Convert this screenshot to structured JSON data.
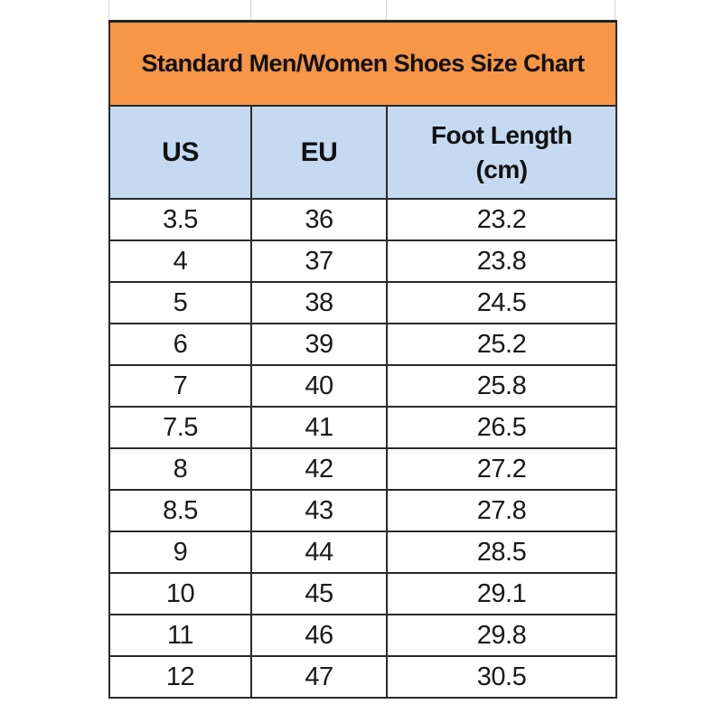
{
  "title": "Standard Men/Women Shoes Size Chart",
  "columns": {
    "us": "US",
    "eu": "EU",
    "foot_length_line1": "Foot Length",
    "foot_length_line2": "(cm)"
  },
  "colors": {
    "title_bg": "#f79646",
    "header_bg": "#c5d9f1"
  },
  "rows": [
    {
      "us": "3.5",
      "eu": "36",
      "cm": "23.2"
    },
    {
      "us": "4",
      "eu": "37",
      "cm": "23.8"
    },
    {
      "us": "5",
      "eu": "38",
      "cm": "24.5"
    },
    {
      "us": "6",
      "eu": "39",
      "cm": "25.2"
    },
    {
      "us": "7",
      "eu": "40",
      "cm": "25.8"
    },
    {
      "us": "7.5",
      "eu": "41",
      "cm": "26.5"
    },
    {
      "us": "8",
      "eu": "42",
      "cm": "27.2"
    },
    {
      "us": "8.5",
      "eu": "43",
      "cm": "27.8"
    },
    {
      "us": "9",
      "eu": "44",
      "cm": "28.5"
    },
    {
      "us": "10",
      "eu": "45",
      "cm": "29.1"
    },
    {
      "us": "11",
      "eu": "46",
      "cm": "29.8"
    },
    {
      "us": "12",
      "eu": "47",
      "cm": "30.5"
    }
  ]
}
